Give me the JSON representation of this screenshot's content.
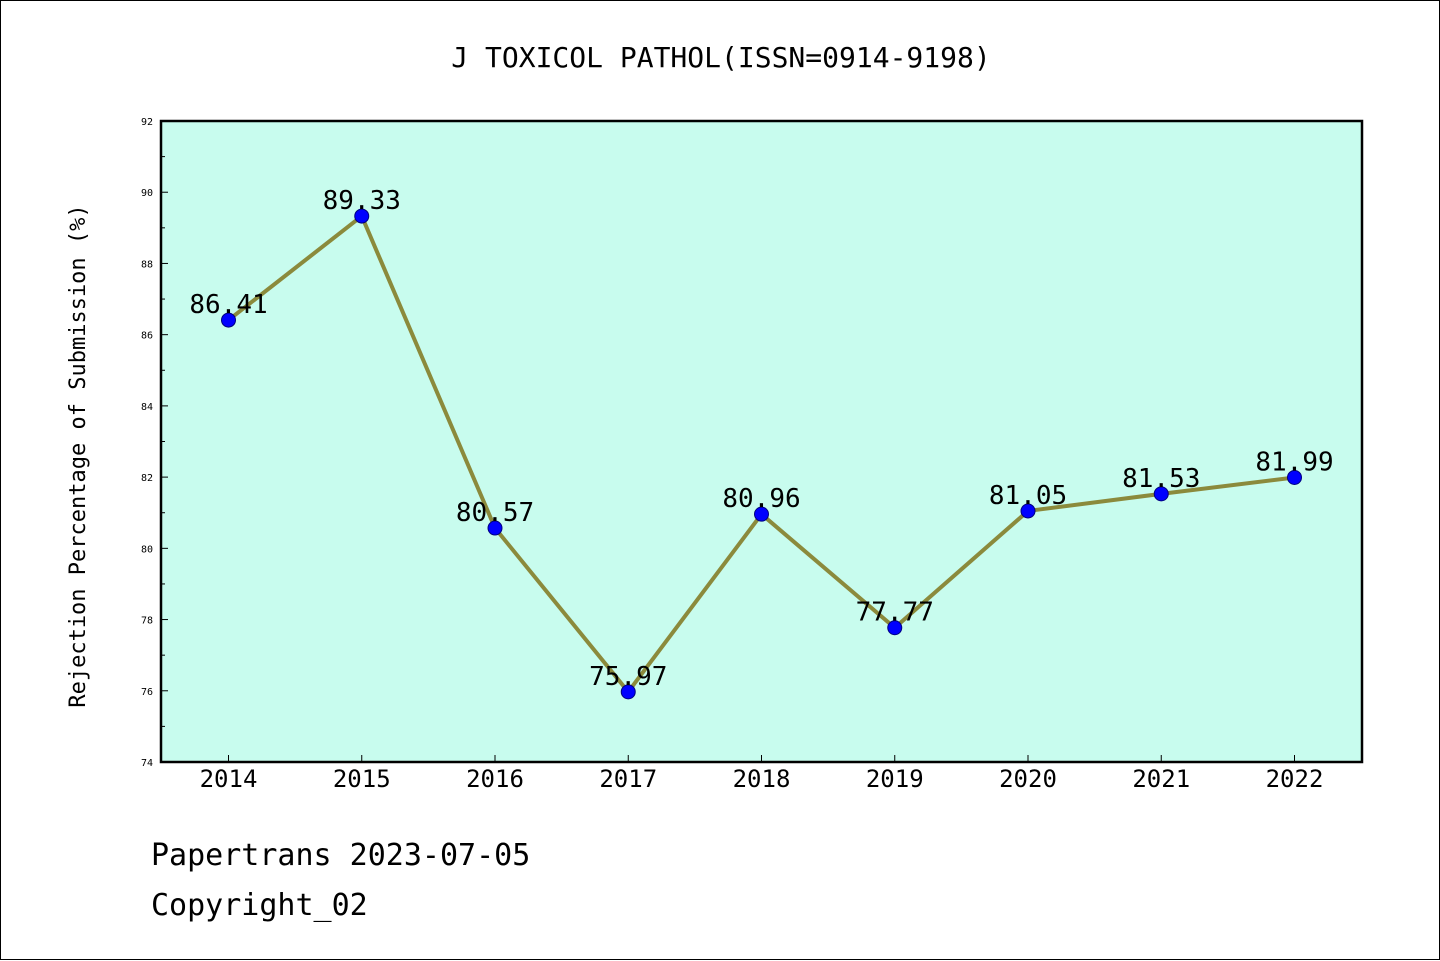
{
  "chart_data": {
    "type": "line",
    "title": "J TOXICOL PATHOL(ISSN=0914-9198)",
    "xlabel": "",
    "ylabel": "Rejection Percentage of Submission (%)",
    "categories": [
      "2014",
      "2015",
      "2016",
      "2017",
      "2018",
      "2019",
      "2020",
      "2021",
      "2022"
    ],
    "series": [
      {
        "values": [
          86.41,
          89.33,
          80.57,
          75.97,
          80.96,
          77.77,
          81.05,
          81.53,
          81.99
        ],
        "data_labels": [
          "86.41",
          "89.33",
          "80.57",
          "75.97",
          "80.96",
          "77.77",
          "81.05",
          "81.53",
          "81.99"
        ]
      }
    ],
    "ylim": [
      74,
      92
    ],
    "yticks": [
      "74",
      "76",
      "78",
      "80",
      "82",
      "84",
      "86",
      "88",
      "90",
      "92"
    ],
    "grid": false,
    "legend": "none",
    "colors": {
      "plot_background": "#c8fcee",
      "line": "#8b8a3c",
      "marker": "#0000ff"
    }
  },
  "footer": {
    "line1": "Papertrans 2023-07-05",
    "line2": "Copyright_02"
  }
}
